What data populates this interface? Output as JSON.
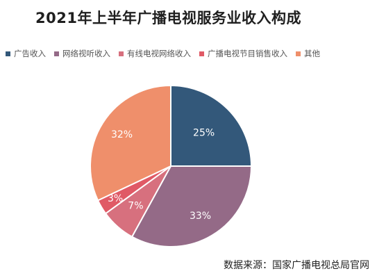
{
  "chart_data": {
    "type": "pie",
    "title": "2021年上半年广播电视服务业收入构成",
    "categories": [
      "广告收入",
      "网络视听收入",
      "有线电视网络收入",
      "广播电视节目销售收入",
      "其他"
    ],
    "values": [
      25,
      33,
      7,
      3,
      32
    ],
    "value_labels": [
      "25%",
      "33%",
      "7%",
      "3%",
      "32%"
    ],
    "colors": [
      "#33587a",
      "#946a87",
      "#d7707e",
      "#e05a66",
      "#ef8f6b"
    ],
    "legend_position": "top"
  },
  "source": "数据来源：国家广播电视总局官网"
}
